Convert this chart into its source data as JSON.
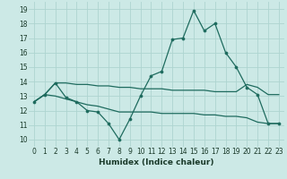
{
  "xlabel": "Humidex (Indice chaleur)",
  "xlim": [
    -0.5,
    23.5
  ],
  "ylim": [
    9.5,
    19.5
  ],
  "yticks": [
    10,
    11,
    12,
    13,
    14,
    15,
    16,
    17,
    18,
    19
  ],
  "xticks": [
    0,
    1,
    2,
    3,
    4,
    5,
    6,
    7,
    8,
    9,
    10,
    11,
    12,
    13,
    14,
    15,
    16,
    17,
    18,
    19,
    20,
    21,
    22,
    23
  ],
  "background_color": "#cce9e6",
  "grid_color": "#aed4d0",
  "line_color": "#1e6b5e",
  "line1_x": [
    0,
    1,
    2,
    3,
    4,
    5,
    6,
    7,
    8,
    9,
    10,
    11,
    12,
    13,
    14,
    15,
    16,
    17,
    18,
    19,
    20,
    21,
    22,
    23
  ],
  "line1_y": [
    12.6,
    13.1,
    13.9,
    12.9,
    12.6,
    12.0,
    11.9,
    11.1,
    10.0,
    11.4,
    13.0,
    14.4,
    14.7,
    16.9,
    17.0,
    18.9,
    17.5,
    18.0,
    16.0,
    15.0,
    13.6,
    13.1,
    11.1,
    11.1
  ],
  "line2_x": [
    0,
    1,
    2,
    3,
    4,
    5,
    6,
    7,
    8,
    9,
    10,
    11,
    12,
    13,
    14,
    15,
    16,
    17,
    18,
    19,
    20,
    21,
    22,
    23
  ],
  "line2_y": [
    12.6,
    13.1,
    13.9,
    13.9,
    13.8,
    13.8,
    13.7,
    13.7,
    13.6,
    13.6,
    13.5,
    13.5,
    13.5,
    13.4,
    13.4,
    13.4,
    13.4,
    13.3,
    13.3,
    13.3,
    13.8,
    13.6,
    13.1,
    13.1
  ],
  "line3_x": [
    0,
    1,
    2,
    3,
    4,
    5,
    6,
    7,
    8,
    9,
    10,
    11,
    12,
    13,
    14,
    15,
    16,
    17,
    18,
    19,
    20,
    21,
    22,
    23
  ],
  "line3_y": [
    12.6,
    13.1,
    13.0,
    12.8,
    12.6,
    12.4,
    12.3,
    12.1,
    11.9,
    11.9,
    11.9,
    11.9,
    11.8,
    11.8,
    11.8,
    11.8,
    11.7,
    11.7,
    11.6,
    11.6,
    11.5,
    11.2,
    11.1,
    11.1
  ]
}
